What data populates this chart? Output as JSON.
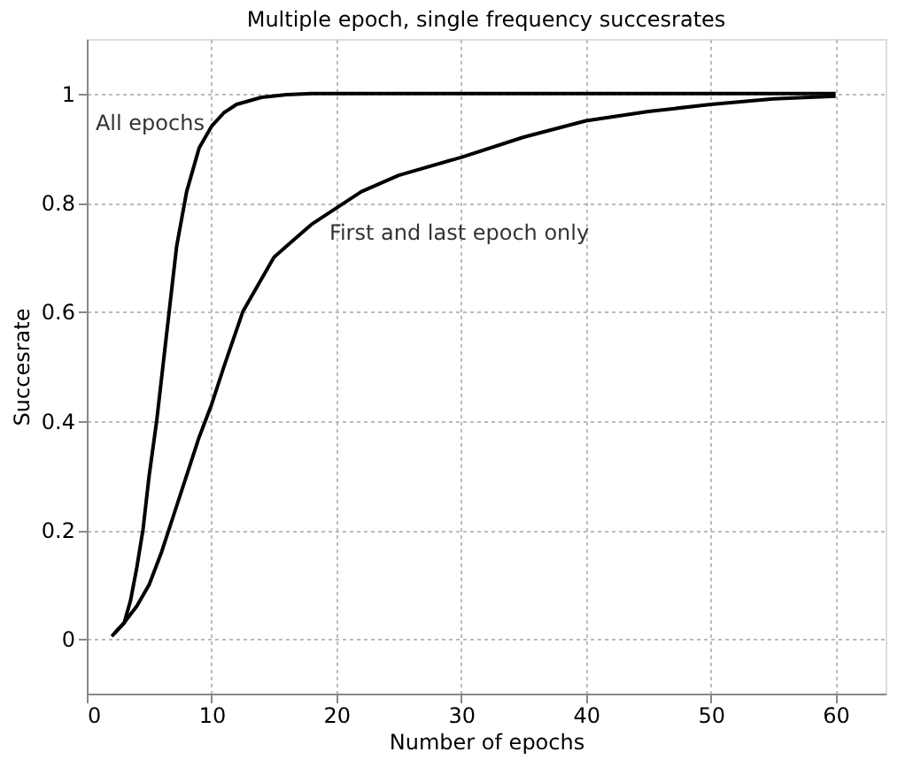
{
  "chart_data": {
    "type": "line",
    "title": "Multiple epoch, single frequency succesrates",
    "xlabel": "Number of epochs",
    "ylabel": "Succesrate",
    "series": [
      {
        "name": "All epochs",
        "x": [
          2,
          3,
          3.5,
          4,
          4.5,
          5,
          5.6,
          6.1,
          6.6,
          7.2,
          8,
          9,
          10,
          11,
          12,
          14,
          16,
          18,
          20,
          30,
          40,
          50,
          60
        ],
        "values": [
          0.005,
          0.03,
          0.07,
          0.13,
          0.2,
          0.3,
          0.4,
          0.5,
          0.6,
          0.72,
          0.82,
          0.9,
          0.94,
          0.965,
          0.98,
          0.993,
          0.998,
          1,
          1,
          1,
          1,
          1,
          1
        ],
        "color": "#000000"
      },
      {
        "name": "First and last epoch only",
        "x": [
          2.2,
          3,
          4,
          5,
          6,
          7,
          8,
          9,
          10,
          11,
          12.5,
          14,
          15,
          16,
          18,
          20,
          22,
          25,
          30,
          35,
          40,
          45,
          50,
          55,
          60
        ],
        "values": [
          0.01,
          0.03,
          0.06,
          0.1,
          0.16,
          0.23,
          0.3,
          0.37,
          0.43,
          0.5,
          0.6,
          0.66,
          0.7,
          0.72,
          0.76,
          0.79,
          0.82,
          0.85,
          0.883,
          0.92,
          0.95,
          0.967,
          0.98,
          0.99,
          0.995
        ],
        "color": "#000000"
      }
    ],
    "xlim": [
      0,
      64
    ],
    "xticks": [
      0,
      10,
      20,
      30,
      40,
      50,
      60
    ],
    "ylim": [
      -0.1,
      1.1
    ],
    "yticks": [
      0,
      0.2,
      0.4,
      0.6,
      0.8,
      1
    ],
    "grid": true,
    "marker": "none",
    "line_style": "solid"
  }
}
